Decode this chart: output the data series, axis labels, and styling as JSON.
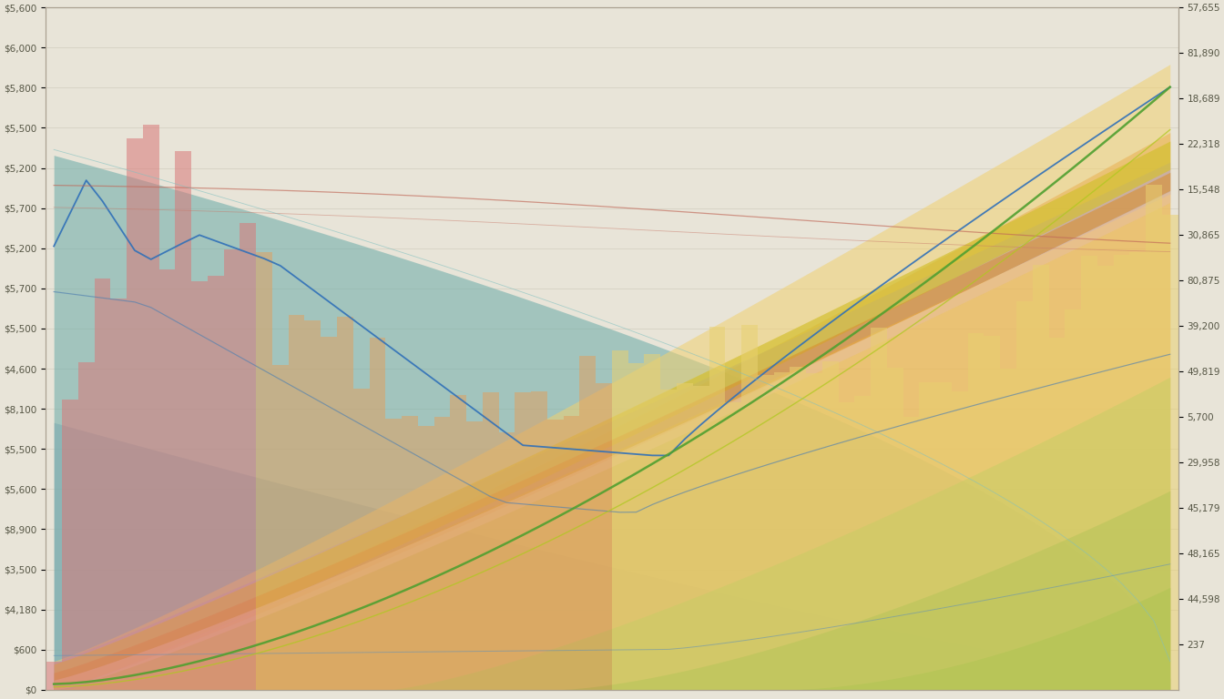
{
  "n_years": 70,
  "background_color": "#e8e4d8",
  "grid_color": "#c8c4b4",
  "ylim_max": 12000,
  "bar_color_early": "#d87878",
  "bar_color_mid": "#e0a060",
  "bar_color_late": "#e8d070",
  "fill_teal": "#6aaba8",
  "fill_blue_gray": "#8fa8b8",
  "fill_purple": "#b0a0c8",
  "fill_yellow": "#d4c030",
  "fill_orange": "#d89030",
  "fill_peach": "#e8c098",
  "fill_green_light": "#a8c858",
  "fill_green": "#78b838",
  "fill_yellow_green": "#c8d840"
}
